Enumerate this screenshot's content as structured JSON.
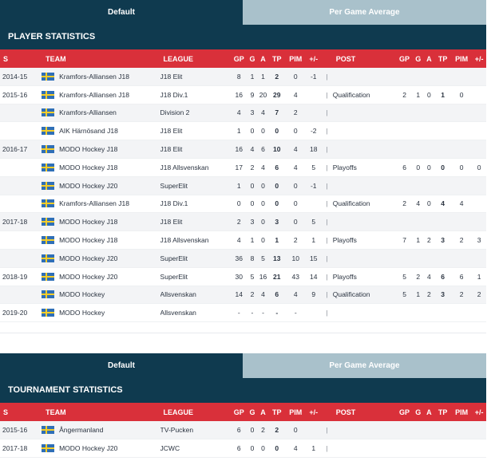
{
  "tabs": {
    "default": "Default",
    "per_game": "Per Game Average"
  },
  "player_section": {
    "title": "PLAYER STATISTICS",
    "headers": {
      "s": "S",
      "team": "TEAM",
      "league": "LEAGUE",
      "gp": "GP",
      "g": "G",
      "a": "A",
      "tp": "TP",
      "pim": "PIM",
      "pm": "+/-",
      "sep": "",
      "post": "POST",
      "pgp": "GP",
      "pg": "G",
      "pa": "A",
      "ptp": "TP",
      "ppim": "PIM",
      "ppm": "+/-"
    },
    "rows": [
      {
        "season": "2014-15",
        "team": "Kramfors-Alliansen J18",
        "league": "J18 Elit",
        "gp": "8",
        "g": "1",
        "a": "1",
        "tp": "2",
        "pim": "0",
        "pm": "-1",
        "sep": "|",
        "post": "",
        "pgp": "",
        "pg": "",
        "pa": "",
        "ptp": "",
        "ppim": "",
        "ppm": ""
      },
      {
        "season": "2015-16",
        "team": "Kramfors-Alliansen J18",
        "league": "J18 Div.1",
        "gp": "16",
        "g": "9",
        "a": "20",
        "tp": "29",
        "pim": "4",
        "pm": "",
        "sep": "|",
        "post": "Qualification",
        "pgp": "2",
        "pg": "1",
        "pa": "0",
        "ptp": "1",
        "ppim": "0",
        "ppm": ""
      },
      {
        "season": "",
        "team": "Kramfors-Alliansen",
        "league": "Division 2",
        "gp": "4",
        "g": "3",
        "a": "4",
        "tp": "7",
        "pim": "2",
        "pm": "",
        "sep": "|",
        "post": "",
        "pgp": "",
        "pg": "",
        "pa": "",
        "ptp": "",
        "ppim": "",
        "ppm": ""
      },
      {
        "season": "",
        "team": "AIK Härnösand J18",
        "league": "J18 Elit",
        "gp": "1",
        "g": "0",
        "a": "0",
        "tp": "0",
        "pim": "0",
        "pm": "-2",
        "sep": "|",
        "post": "",
        "pgp": "",
        "pg": "",
        "pa": "",
        "ptp": "",
        "ppim": "",
        "ppm": ""
      },
      {
        "season": "2016-17",
        "team": "MODO Hockey J18",
        "league": "J18 Elit",
        "gp": "16",
        "g": "4",
        "a": "6",
        "tp": "10",
        "pim": "4",
        "pm": "18",
        "sep": "|",
        "post": "",
        "pgp": "",
        "pg": "",
        "pa": "",
        "ptp": "",
        "ppim": "",
        "ppm": ""
      },
      {
        "season": "",
        "team": "MODO Hockey J18",
        "league": "J18 Allsvenskan",
        "gp": "17",
        "g": "2",
        "a": "4",
        "tp": "6",
        "pim": "4",
        "pm": "5",
        "sep": "|",
        "post": "Playoffs",
        "pgp": "6",
        "pg": "0",
        "pa": "0",
        "ptp": "0",
        "ppim": "0",
        "ppm": "0"
      },
      {
        "season": "",
        "team": "MODO Hockey J20",
        "league": "SuperElit",
        "gp": "1",
        "g": "0",
        "a": "0",
        "tp": "0",
        "pim": "0",
        "pm": "-1",
        "sep": "|",
        "post": "",
        "pgp": "",
        "pg": "",
        "pa": "",
        "ptp": "",
        "ppim": "",
        "ppm": ""
      },
      {
        "season": "",
        "team": "Kramfors-Alliansen J18",
        "league": "J18 Div.1",
        "gp": "0",
        "g": "0",
        "a": "0",
        "tp": "0",
        "pim": "0",
        "pm": "",
        "sep": "|",
        "post": "Qualification",
        "pgp": "2",
        "pg": "4",
        "pa": "0",
        "ptp": "4",
        "ppim": "4",
        "ppm": ""
      },
      {
        "season": "2017-18",
        "team": "MODO Hockey J18",
        "league": "J18 Elit",
        "gp": "2",
        "g": "3",
        "a": "0",
        "tp": "3",
        "pim": "0",
        "pm": "5",
        "sep": "|",
        "post": "",
        "pgp": "",
        "pg": "",
        "pa": "",
        "ptp": "",
        "ppim": "",
        "ppm": ""
      },
      {
        "season": "",
        "team": "MODO Hockey J18",
        "league": "J18 Allsvenskan",
        "gp": "4",
        "g": "1",
        "a": "0",
        "tp": "1",
        "pim": "2",
        "pm": "1",
        "sep": "|",
        "post": "Playoffs",
        "pgp": "7",
        "pg": "1",
        "pa": "2",
        "ptp": "3",
        "ppim": "2",
        "ppm": "3"
      },
      {
        "season": "",
        "team": "MODO Hockey J20",
        "league": "SuperElit",
        "gp": "36",
        "g": "8",
        "a": "5",
        "tp": "13",
        "pim": "10",
        "pm": "15",
        "sep": "|",
        "post": "",
        "pgp": "",
        "pg": "",
        "pa": "",
        "ptp": "",
        "ppim": "",
        "ppm": ""
      },
      {
        "season": "2018-19",
        "team": "MODO Hockey J20",
        "league": "SuperElit",
        "gp": "30",
        "g": "5",
        "a": "16",
        "tp": "21",
        "pim": "43",
        "pm": "14",
        "sep": "|",
        "post": "Playoffs",
        "pgp": "5",
        "pg": "2",
        "pa": "4",
        "ptp": "6",
        "ppim": "6",
        "ppm": "1"
      },
      {
        "season": "",
        "team": "MODO Hockey",
        "league": "Allsvenskan",
        "gp": "14",
        "g": "2",
        "a": "4",
        "tp": "6",
        "pim": "4",
        "pm": "9",
        "sep": "|",
        "post": "Qualification",
        "pgp": "5",
        "pg": "1",
        "pa": "2",
        "ptp": "3",
        "ppim": "2",
        "ppm": "2"
      },
      {
        "season": "2019-20",
        "team": "MODO Hockey",
        "league": "Allsvenskan",
        "gp": "-",
        "g": "-",
        "a": "-",
        "tp": "-",
        "pim": "-",
        "pm": "",
        "sep": "|",
        "post": "",
        "pgp": "",
        "pg": "",
        "pa": "",
        "ptp": "",
        "ppim": "",
        "ppm": ""
      }
    ]
  },
  "tournament_section": {
    "title": "TOURNAMENT STATISTICS",
    "rows": [
      {
        "season": "2015-16",
        "team": "Ångermanland",
        "league": "TV-Pucken",
        "gp": "6",
        "g": "0",
        "a": "2",
        "tp": "2",
        "pim": "0",
        "pm": "",
        "sep": "|",
        "post": "",
        "pgp": "",
        "pg": "",
        "pa": "",
        "ptp": "",
        "ppim": "",
        "ppm": ""
      },
      {
        "season": "2017-18",
        "team": "MODO Hockey J20",
        "league": "JCWC",
        "gp": "6",
        "g": "0",
        "a": "0",
        "tp": "0",
        "pim": "4",
        "pm": "1",
        "sep": "|",
        "post": "",
        "pgp": "",
        "pg": "",
        "pa": "",
        "ptp": "",
        "ppim": "",
        "ppm": ""
      }
    ]
  },
  "colors": {
    "navy": "#0f3a4f",
    "tab_inactive": "#a9c1cb",
    "header_red": "#d9303a",
    "flag_blue": "#2f6fb7",
    "flag_yellow": "#f4cd2a"
  },
  "icons": {
    "flag": "sweden-flag-icon"
  }
}
